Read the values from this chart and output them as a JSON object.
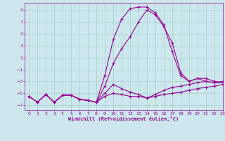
{
  "xlabel": "Windchill (Refroidissement éolien,°C)",
  "background_color": "#cce8ec",
  "line_color": "#990099",
  "grid_color": "#aacccc",
  "xlim": [
    -0.5,
    23
  ],
  "ylim": [
    -7.8,
    10.2
  ],
  "yticks": [
    -7,
    -5,
    -3,
    -1,
    1,
    3,
    5,
    7,
    9
  ],
  "xticks": [
    0,
    1,
    2,
    3,
    4,
    5,
    6,
    7,
    8,
    9,
    10,
    11,
    12,
    13,
    14,
    15,
    16,
    17,
    18,
    19,
    20,
    21,
    22,
    23
  ],
  "hours": [
    0,
    1,
    2,
    3,
    4,
    5,
    6,
    7,
    8,
    9,
    10,
    11,
    12,
    13,
    14,
    15,
    16,
    17,
    18,
    19,
    20,
    21,
    22,
    23
  ],
  "curve1": [
    -5.5,
    -6.5,
    -5.2,
    -6.5,
    -5.3,
    -5.3,
    -6.0,
    -6.2,
    -6.5,
    -2.0,
    4.0,
    7.5,
    9.2,
    9.5,
    9.5,
    8.5,
    6.5,
    2.0,
    -2.0,
    -3.0,
    -2.5,
    -2.5,
    -3.0,
    -3.2
  ],
  "curve2": [
    -5.5,
    -6.5,
    -5.2,
    -6.5,
    -5.3,
    -5.3,
    -6.0,
    -6.2,
    -6.5,
    -3.8,
    0.0,
    2.5,
    4.5,
    7.0,
    9.0,
    8.2,
    6.2,
    3.5,
    -1.5,
    -3.0,
    -2.5,
    -3.0,
    -3.2,
    -3.2
  ],
  "curve3": [
    -5.5,
    -6.5,
    -5.2,
    -6.5,
    -5.3,
    -5.3,
    -6.0,
    -6.2,
    -6.5,
    -5.0,
    -3.5,
    -4.2,
    -4.8,
    -5.2,
    -5.8,
    -5.2,
    -4.5,
    -4.0,
    -3.8,
    -3.5,
    -3.2,
    -3.0,
    -3.2,
    -3.0
  ],
  "curve4": [
    -5.5,
    -6.5,
    -5.2,
    -6.5,
    -5.3,
    -5.3,
    -6.0,
    -6.2,
    -6.5,
    -5.5,
    -5.0,
    -5.2,
    -5.5,
    -5.5,
    -5.8,
    -5.5,
    -5.2,
    -5.0,
    -4.8,
    -4.5,
    -4.2,
    -4.0,
    -3.8,
    -3.5
  ]
}
